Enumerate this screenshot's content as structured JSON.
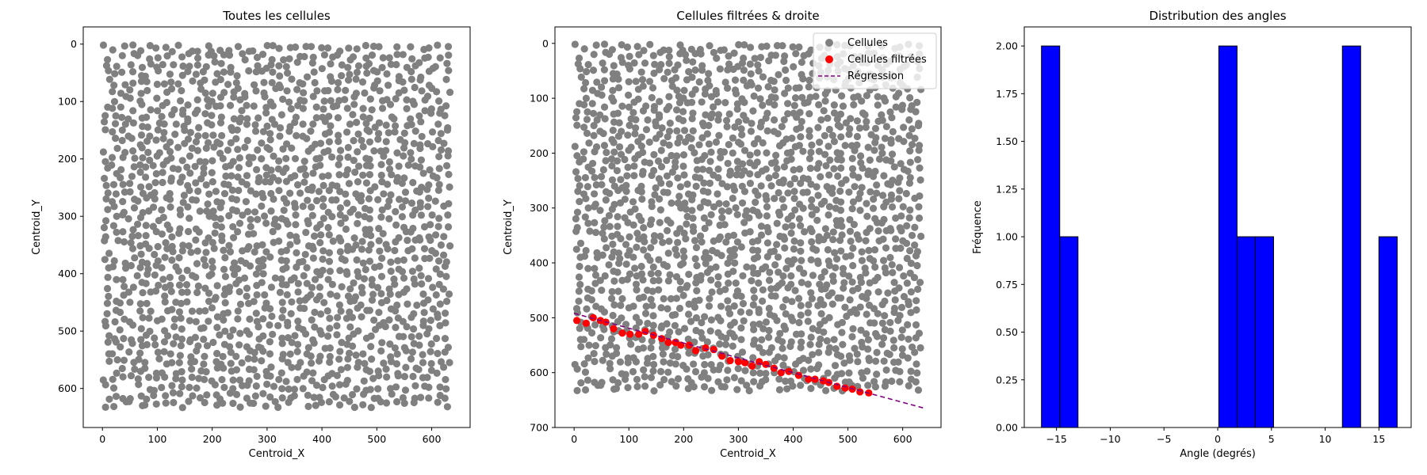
{
  "colors": {
    "cells": "#808080",
    "filtered": "#ff0000",
    "regression": "#800080",
    "hist_bar": "#0000ff",
    "hist_edge": "#000000"
  },
  "chart_data": [
    {
      "type": "scatter",
      "title": "Toutes les cellules",
      "xlabel": "Centroid_X",
      "ylabel": "Centroid_Y",
      "xlim": [
        -35,
        670
      ],
      "ylim": [
        668,
        -30
      ],
      "y_inverted": true,
      "xticks": [
        0,
        100,
        200,
        300,
        400,
        500,
        600
      ],
      "yticks": [
        0,
        100,
        200,
        300,
        400,
        500,
        600
      ],
      "series": [
        {
          "color": "#808080",
          "point_cloud": {
            "description": "dense grid of roughly 1800 cell centroids filling x 0–635, y 0–635",
            "x_range": [
              0,
              635
            ],
            "y_range": [
              0,
              635
            ],
            "approx_count": 1800
          }
        }
      ]
    },
    {
      "type": "scatter",
      "title": "Cellules filtrées & droite",
      "xlabel": "Centroid_X",
      "ylabel": "Centroid_Y",
      "xlim": [
        -35,
        670
      ],
      "ylim": [
        700,
        -30
      ],
      "y_inverted": true,
      "xticks": [
        0,
        100,
        200,
        300,
        400,
        500,
        600
      ],
      "yticks": [
        0,
        100,
        200,
        300,
        400,
        500,
        600,
        700
      ],
      "legend_position": "top-right",
      "series": [
        {
          "name": "Cellules",
          "color": "#808080",
          "point_cloud": {
            "x_range": [
              0,
              635
            ],
            "y_range": [
              0,
              635
            ],
            "approx_count": 1800
          }
        },
        {
          "name": "Cellules filtrées",
          "color": "#ff0000",
          "points": [
            [
              5,
              505
            ],
            [
              22,
              510
            ],
            [
              35,
              500
            ],
            [
              48,
              505
            ],
            [
              58,
              508
            ],
            [
              72,
              520
            ],
            [
              88,
              528
            ],
            [
              102,
              530
            ],
            [
              118,
              530
            ],
            [
              130,
              525
            ],
            [
              145,
              532
            ],
            [
              160,
              538
            ],
            [
              172,
              545
            ],
            [
              185,
              545
            ],
            [
              195,
              550
            ],
            [
              210,
              550
            ],
            [
              222,
              560
            ],
            [
              240,
              555
            ],
            [
              255,
              558
            ],
            [
              270,
              570
            ],
            [
              285,
              578
            ],
            [
              300,
              580
            ],
            [
              312,
              582
            ],
            [
              325,
              588
            ],
            [
              338,
              580
            ],
            [
              350,
              585
            ],
            [
              365,
              592
            ],
            [
              378,
              600
            ],
            [
              392,
              598
            ],
            [
              410,
              605
            ],
            [
              428,
              612
            ],
            [
              440,
              612
            ],
            [
              455,
              615
            ],
            [
              465,
              618
            ],
            [
              480,
              625
            ],
            [
              495,
              628
            ],
            [
              508,
              630
            ],
            [
              522,
              635
            ],
            [
              538,
              637
            ]
          ]
        },
        {
          "name": "Régression",
          "color": "#800080",
          "style": "dashed",
          "x": [
            0,
            640
          ],
          "y": [
            492,
            665
          ]
        }
      ]
    },
    {
      "type": "bar",
      "title": "Distribution des angles",
      "xlabel": "Angle (degrés)",
      "ylabel": "Fréquence",
      "xlim": [
        -18,
        18
      ],
      "ylim": [
        0,
        2.1
      ],
      "xticks": [
        -15,
        -10,
        -5,
        0,
        5,
        10,
        15
      ],
      "yticks": [
        "0.00",
        "0.25",
        "0.50",
        "0.75",
        "1.00",
        "1.25",
        "1.50",
        "1.75",
        "2.00"
      ],
      "bins": [
        {
          "from": -16.4,
          "to": -14.7,
          "value": 2
        },
        {
          "from": -14.7,
          "to": -13.0,
          "value": 1
        },
        {
          "from": 0.1,
          "to": 1.8,
          "value": 2
        },
        {
          "from": 1.8,
          "to": 3.5,
          "value": 1
        },
        {
          "from": 3.5,
          "to": 5.2,
          "value": 1
        },
        {
          "from": 11.6,
          "to": 13.3,
          "value": 2
        },
        {
          "from": 15.0,
          "to": 16.7,
          "value": 1
        }
      ]
    }
  ]
}
